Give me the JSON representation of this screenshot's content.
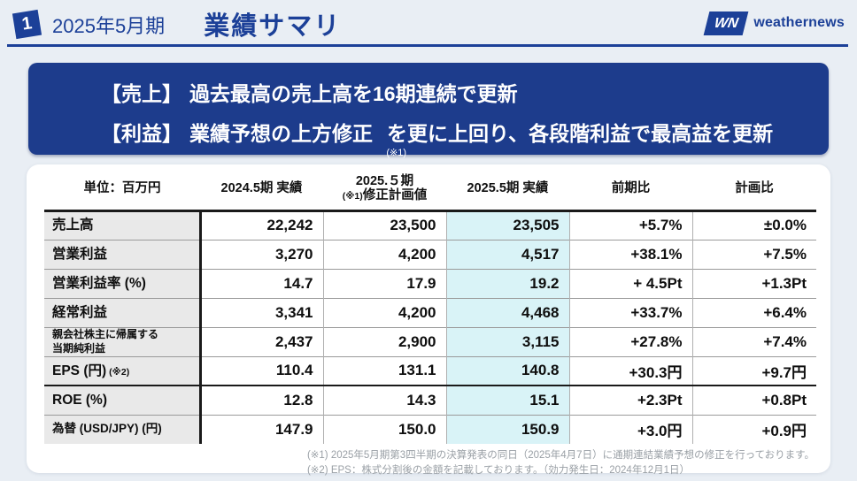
{
  "colors": {
    "primary_blue": "#1c4098",
    "banner_blue": "#1d3c8c",
    "highlight_cyan": "#d9f3f7",
    "row_label_gray": "#e9e9e9",
    "page_background": "#e9eef4",
    "footnote_gray": "#9aa0a6"
  },
  "header": {
    "badge": "1",
    "period": "2025年5月期",
    "title": "業績サマリ",
    "logo_mark": "WN",
    "logo_text": "weathernews"
  },
  "banner": {
    "line1_prefix": "【売上】",
    "line1_text": "過去最高の売上高を16期連続で更新",
    "line2_prefix": "【利益】",
    "line2_highlight": "業績予想の上方修正",
    "line2_note": "(※1)",
    "line2_rest": "を更に上回り、各段階利益で最高益を更新"
  },
  "table": {
    "unit_header": "単位：百万円",
    "col1": "2024.5期 実績",
    "col2_line1": "2025.５期",
    "col2_note": "(※1)",
    "col2_line2": "修正計画値",
    "col3": "2025.5期 実績",
    "col4": "前期比",
    "col5": "計画比",
    "rows": [
      {
        "label": "売上高",
        "values": [
          "22,242",
          "23,500",
          "23,505",
          "+5.7%",
          "±0.0%"
        ]
      },
      {
        "label": "営業利益",
        "values": [
          "3,270",
          "4,200",
          "4,517",
          "+38.1%",
          "+7.5%"
        ]
      },
      {
        "label": "営業利益率 (%)",
        "values": [
          "14.7",
          "17.9",
          "19.2",
          "+ 4.5Pt",
          "+1.3Pt"
        ]
      },
      {
        "label": "経常利益",
        "values": [
          "3,341",
          "4,200",
          "4,468",
          "+33.7%",
          "+6.4%"
        ]
      },
      {
        "label": "親会社株主に帰属する\n当期純利益",
        "values": [
          "2,437",
          "2,900",
          "3,115",
          "+27.8%",
          "+7.4%"
        ]
      },
      {
        "label": "EPS (円)",
        "label_note": "(※2)",
        "values": [
          "110.4",
          "131.1",
          "140.8",
          "+30.3円",
          "+9.7円"
        ]
      },
      {
        "label": "ROE (%)",
        "values": [
          "12.8",
          "14.3",
          "15.1",
          "+2.3Pt",
          "+0.8Pt"
        ]
      },
      {
        "label": "為替 (USD/JPY) (円)",
        "values": [
          "147.9",
          "150.0",
          "150.9",
          "+3.0円",
          "+0.9円"
        ]
      }
    ]
  },
  "footnotes": {
    "note1": "(※1) 2025年5月期第3四半期の決算発表の同日（2025年4月7日）に通期連結業績予想の修正を行っております。",
    "note2": "(※2) EPS：株式分割後の金額を記載しております。（効力発生日：2024年12月1日）"
  }
}
